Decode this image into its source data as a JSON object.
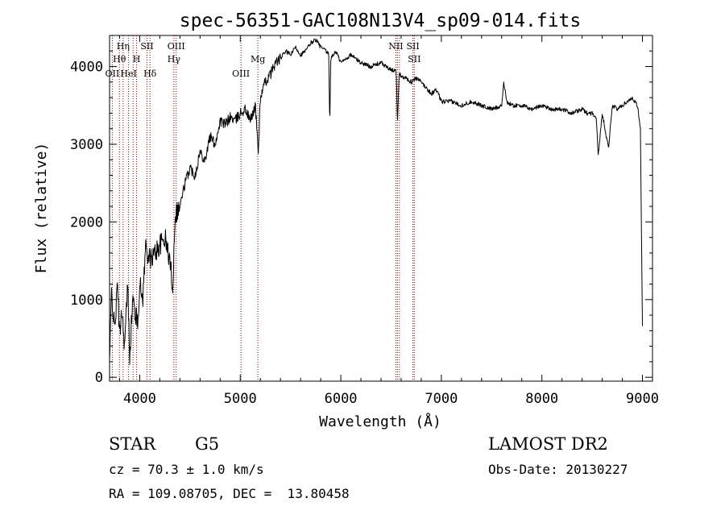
{
  "chart_data": {
    "type": "line",
    "title": "spec-56351-GAC108N13V4_sp09-014.fits",
    "xlabel": "Wavelength (Å)",
    "ylabel": "Flux (relative)",
    "xlim": [
      3700,
      9100
    ],
    "ylim": [
      -50,
      4400
    ],
    "xticks": [
      4000,
      5000,
      6000,
      7000,
      8000,
      9000
    ],
    "yticks": [
      0,
      1000,
      2000,
      3000,
      4000
    ],
    "xtick_labels": [
      "4000",
      "5000",
      "6000",
      "7000",
      "8000",
      "9000"
    ],
    "ytick_labels": [
      "0",
      "1000",
      "2000",
      "3000",
      "4000"
    ],
    "grid": false,
    "line_color": "#000000",
    "marker_color": "#8b0000",
    "series": [
      {
        "x": [
          3700,
          3720,
          3750,
          3780,
          3800,
          3820,
          3850,
          3880,
          3900,
          3930,
          3960,
          3980,
          4000,
          4030,
          4060,
          4100,
          4150,
          4200,
          4250,
          4300,
          4330,
          4350,
          4400,
          4450,
          4500,
          4550,
          4600,
          4650,
          4700,
          4750,
          4800,
          4850,
          4900,
          4950,
          5000,
          5050,
          5100,
          5150,
          5180,
          5200,
          5250,
          5300,
          5350,
          5400,
          5450,
          5500,
          5550,
          5600,
          5650,
          5700,
          5750,
          5800,
          5850,
          5880,
          5890,
          5900,
          5950,
          6000,
          6100,
          6200,
          6300,
          6400,
          6500,
          6550,
          6563,
          6580,
          6650,
          6700,
          6750,
          6800,
          6900,
          6950,
          7000,
          7100,
          7200,
          7300,
          7400,
          7500,
          7600,
          7620,
          7650,
          7700,
          7800,
          7900,
          8000,
          8100,
          8200,
          8300,
          8400,
          8450,
          8500,
          8540,
          8560,
          8600,
          8662,
          8700,
          8750,
          8800,
          8850,
          8900,
          8950,
          8980,
          9000
        ],
        "y": [
          200,
          1100,
          600,
          1200,
          500,
          900,
          400,
          1200,
          300,
          1000,
          800,
          700,
          1200,
          1000,
          1700,
          1500,
          1600,
          1700,
          1800,
          1500,
          1150,
          2100,
          2200,
          2500,
          2700,
          2600,
          2900,
          2800,
          3100,
          3000,
          3300,
          3250,
          3350,
          3300,
          3400,
          3450,
          3300,
          3500,
          2900,
          3600,
          3800,
          3900,
          4050,
          4100,
          4200,
          4150,
          4250,
          4150,
          4200,
          4300,
          4350,
          4250,
          4200,
          4150,
          3200,
          4100,
          4200,
          4050,
          4150,
          4050,
          4000,
          4050,
          3950,
          3950,
          3300,
          3900,
          3850,
          3800,
          3850,
          3800,
          3650,
          3700,
          3550,
          3550,
          3500,
          3550,
          3500,
          3450,
          3500,
          3800,
          3550,
          3500,
          3500,
          3450,
          3500,
          3450,
          3450,
          3400,
          3450,
          3400,
          3400,
          3350,
          2850,
          3400,
          2950,
          3500,
          3450,
          3500,
          3550,
          3600,
          3500,
          3200,
          650
        ]
      }
    ],
    "line_markers": [
      {
        "x": 3727,
        "label": "OII",
        "row": 3
      },
      {
        "x": 3798,
        "label": "Hθ",
        "row": 2
      },
      {
        "x": 3835,
        "label": "Hη",
        "row": 1
      },
      {
        "x": 3889,
        "label": "HeI",
        "row": 3
      },
      {
        "x": 3934,
        "label": "",
        "row": 0
      },
      {
        "x": 3969,
        "label": "H",
        "row": 2
      },
      {
        "x": 4072,
        "label": "SII",
        "row": 1
      },
      {
        "x": 4102,
        "label": "Hδ",
        "row": 3
      },
      {
        "x": 4340,
        "label": "Hγ",
        "row": 2
      },
      {
        "x": 4363,
        "label": "OIII",
        "row": 1
      },
      {
        "x": 5007,
        "label": "OIII",
        "row": 3
      },
      {
        "x": 5175,
        "label": "Mg",
        "row": 2
      },
      {
        "x": 6548,
        "label": "NII",
        "row": 1
      },
      {
        "x": 6563,
        "label": "",
        "row": 0
      },
      {
        "x": 6583,
        "label": "",
        "row": 0
      },
      {
        "x": 6717,
        "label": "SII",
        "row": 1
      },
      {
        "x": 6731,
        "label": "SII",
        "row": 2
      }
    ]
  },
  "info": {
    "object_class": "STAR",
    "subclass": "G5",
    "survey": "LAMOST DR2",
    "redshift": "cz = 70.3 ± 1.0 km/s",
    "obs_date": "Obs-Date: 20130227",
    "coords": "RA = 109.08705, DEC =  13.80458"
  }
}
